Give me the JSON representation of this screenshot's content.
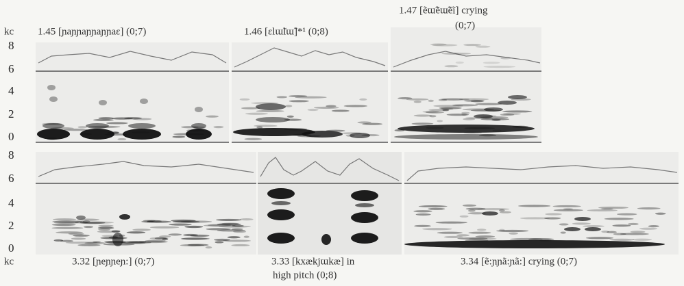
{
  "axis": {
    "top_unit": "kc",
    "bottom_unit": "kc",
    "top_ticks": [
      8,
      6,
      4,
      2,
      0
    ],
    "bottom_ticks": [
      8,
      6,
      4,
      2,
      0
    ]
  },
  "top_panels": [
    {
      "caption": "1.45 [ɲaɲɲaɲɲaɲɲaɛ] (0;7)"
    },
    {
      "caption": "1.46 [ɛlɯ̃lɯ̃]*¹ (0;8)"
    },
    {
      "caption": "1.47 [ẽɯ̃ẽɯ̃ẽĩ] crying",
      "caption_line2": "(0;7)"
    }
  ],
  "bottom_panels": [
    {
      "caption": "3.32 [ɲeɲɲeɲ:] (0;7)"
    },
    {
      "caption": "3.33 [kxækjɯkæ] in",
      "caption_line2": "high pitch (0;8)"
    },
    {
      "caption": "3.34 [ẽ:ɲɲã:ɲã:] crying (0;7)"
    }
  ]
}
